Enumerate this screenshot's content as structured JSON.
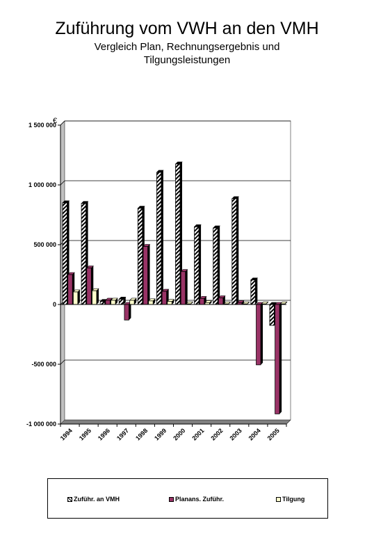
{
  "title": "Zuführung vom VWH an den VMH",
  "subtitle": "Vergleich Plan, Rechnungsergebnis und\nTilgungsleistungen",
  "chart_data": {
    "type": "bar",
    "title": "Zuführung vom VWH an den VMH",
    "subtitle": "Vergleich Plan, Rechnungsergebnis und Tilgungsleistungen",
    "ylabel": "€",
    "ylim": [
      -1000000,
      1500000
    ],
    "yticks": [
      1500000,
      1000000,
      500000,
      0,
      -500000,
      -1000000
    ],
    "ytick_labels": [
      "1 500 000",
      "1 000 000",
      "500 000",
      "0",
      "-500 000",
      "-1 000 000"
    ],
    "categories": [
      "1994",
      "1995",
      "1996",
      "1997",
      "1998",
      "1999",
      "2000",
      "2001",
      "2002",
      "2003",
      "2004",
      "2005"
    ],
    "grid": true,
    "three_d": true,
    "legend_position": "bottom",
    "series": [
      {
        "name": "Zuführ. an VMH",
        "pattern": "diagonal-hatch",
        "color": "#ffffff",
        "values": [
          850000,
          845000,
          25000,
          45000,
          805000,
          1105000,
          1175000,
          650000,
          640000,
          885000,
          205000,
          -175000
        ]
      },
      {
        "name": "Planans. Zuführ.",
        "color": "#993366",
        "values": [
          250000,
          305000,
          35000,
          -130000,
          485000,
          110000,
          275000,
          50000,
          55000,
          15000,
          -505000,
          -915000
        ]
      },
      {
        "name": "Tilgung",
        "color": "#ffffcc",
        "values": [
          105000,
          115000,
          35000,
          35000,
          30000,
          25000,
          5000,
          15000,
          5000,
          5000,
          5000,
          5000
        ]
      }
    ]
  }
}
